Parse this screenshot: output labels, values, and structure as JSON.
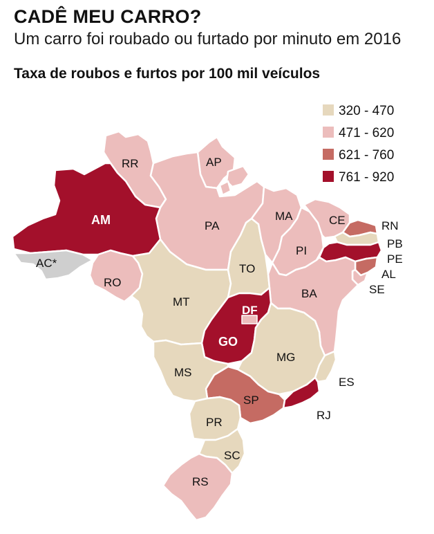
{
  "header": {
    "title": "CADÊ MEU CARRO?",
    "subtitle": "Um carro foi roubado ou furtado por minuto em 2016",
    "map_title": "Taxa de roubos e furtos por 100 mil veículos"
  },
  "colors": {
    "c1": "#e6d8bd",
    "c2": "#ecbdbc",
    "c3": "#c56b63",
    "c4": "#a3102b",
    "nodata": "#cfcfcf"
  },
  "legend": [
    {
      "range": "320 - 470",
      "color": "#e6d8bd"
    },
    {
      "range": "471 - 620",
      "color": "#ecbdbc"
    },
    {
      "range": "621 - 760",
      "color": "#c56b63"
    },
    {
      "range": "761 - 920",
      "color": "#a3102b"
    }
  ],
  "states": {
    "AM": {
      "label": "AM",
      "class": "761 - 920"
    },
    "PA": {
      "label": "PA",
      "class": "471 - 620"
    },
    "RR": {
      "label": "RR",
      "class": "471 - 620"
    },
    "AP": {
      "label": "AP",
      "class": "471 - 620"
    },
    "AC": {
      "label": "AC*",
      "class": "no data"
    },
    "RO": {
      "label": "RO",
      "class": "471 - 620"
    },
    "MT": {
      "label": "MT",
      "class": "320 - 470"
    },
    "TO": {
      "label": "TO",
      "class": "320 - 470"
    },
    "MA": {
      "label": "MA",
      "class": "471 - 620"
    },
    "PI": {
      "label": "PI",
      "class": "471 - 620"
    },
    "CE": {
      "label": "CE",
      "class": "471 - 620"
    },
    "RN": {
      "label": "RN",
      "class": "621 - 760"
    },
    "PB": {
      "label": "PB",
      "class": "320 - 470"
    },
    "PE": {
      "label": "PE",
      "class": "761 - 920"
    },
    "AL": {
      "label": "AL",
      "class": "621 - 760"
    },
    "SE": {
      "label": "SE",
      "class": "471 - 620"
    },
    "BA": {
      "label": "BA",
      "class": "471 - 620"
    },
    "GO": {
      "label": "GO",
      "class": "761 - 920"
    },
    "DF": {
      "label": "DF",
      "class": "471 - 620"
    },
    "MG": {
      "label": "MG",
      "class": "320 - 470"
    },
    "ES": {
      "label": "ES",
      "class": "320 - 470"
    },
    "RJ": {
      "label": "RJ",
      "class": "761 - 920"
    },
    "SP": {
      "label": "SP",
      "class": "621 - 760"
    },
    "MS": {
      "label": "MS",
      "class": "320 - 470"
    },
    "PR": {
      "label": "PR",
      "class": "320 - 470"
    },
    "SC": {
      "label": "SC",
      "class": "320 - 470"
    },
    "RS": {
      "label": "RS",
      "class": "471 - 620"
    }
  }
}
